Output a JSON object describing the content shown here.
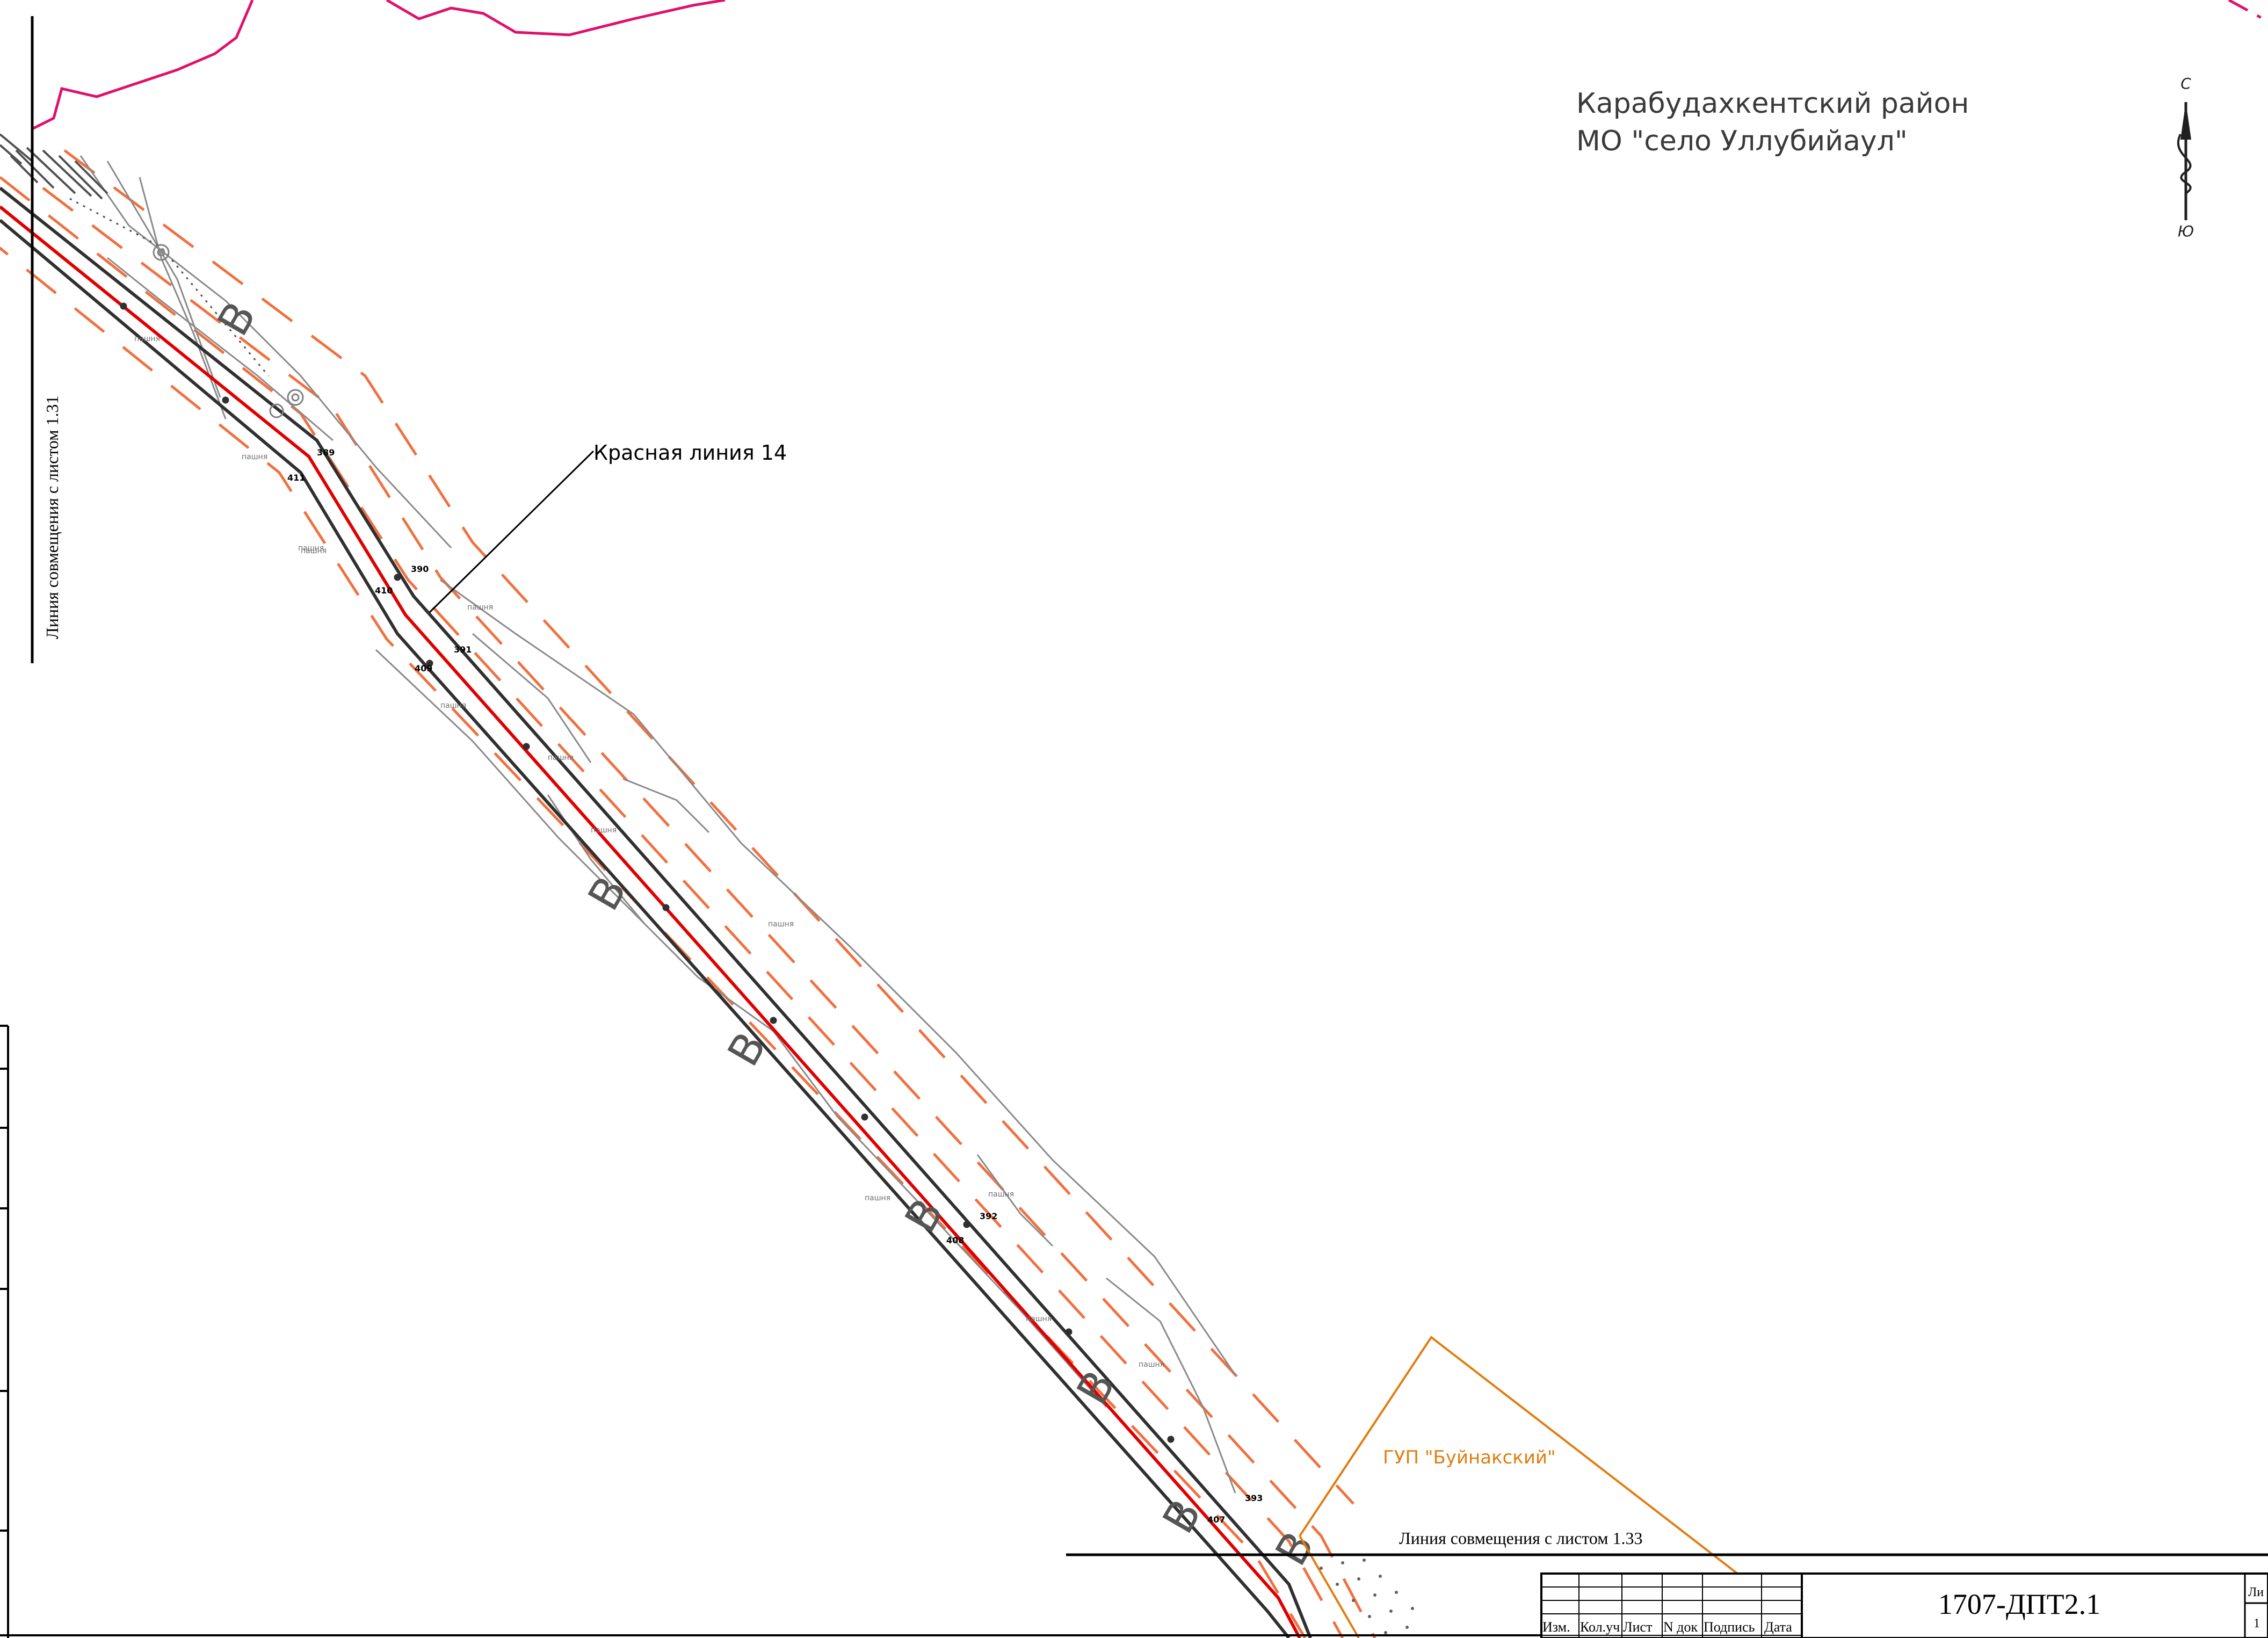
{
  "colors": {
    "background": "#ffffff",
    "road_edge": "#303030",
    "red_line": "#e00000",
    "dashed_orange": "#f07040",
    "thin_gray": "#808080",
    "boundary_magenta": "#e0106a",
    "gup_orange": "#e07d10",
    "frame": "#000000"
  },
  "district_title": {
    "line1": "Карабудахкентский район",
    "line2": "МО \"село Уллубийаул\""
  },
  "north_arrow": {
    "north": "С",
    "south": "Ю"
  },
  "labels": {
    "red_line": "Красная линия 14",
    "gup": "ГУП \"Буйнакский\"",
    "match_line_left": "Линия совмещения с листом 1.31",
    "match_line_bottom": "Линия совмещения с листом 1.33"
  },
  "zone_letter": "В",
  "point_numbers": [
    "411",
    "389",
    "410",
    "390",
    "409",
    "391",
    "392",
    "408",
    "407",
    "393"
  ],
  "land_label": "пашня",
  "title_block": {
    "doc_code": "1707-ДПТ2.1",
    "columns": [
      "Изм.",
      "Кол.уч",
      "Лист",
      "N док",
      "Подпись",
      "Дата"
    ],
    "sheet_label": "Ли",
    "sheet_value": "1"
  }
}
